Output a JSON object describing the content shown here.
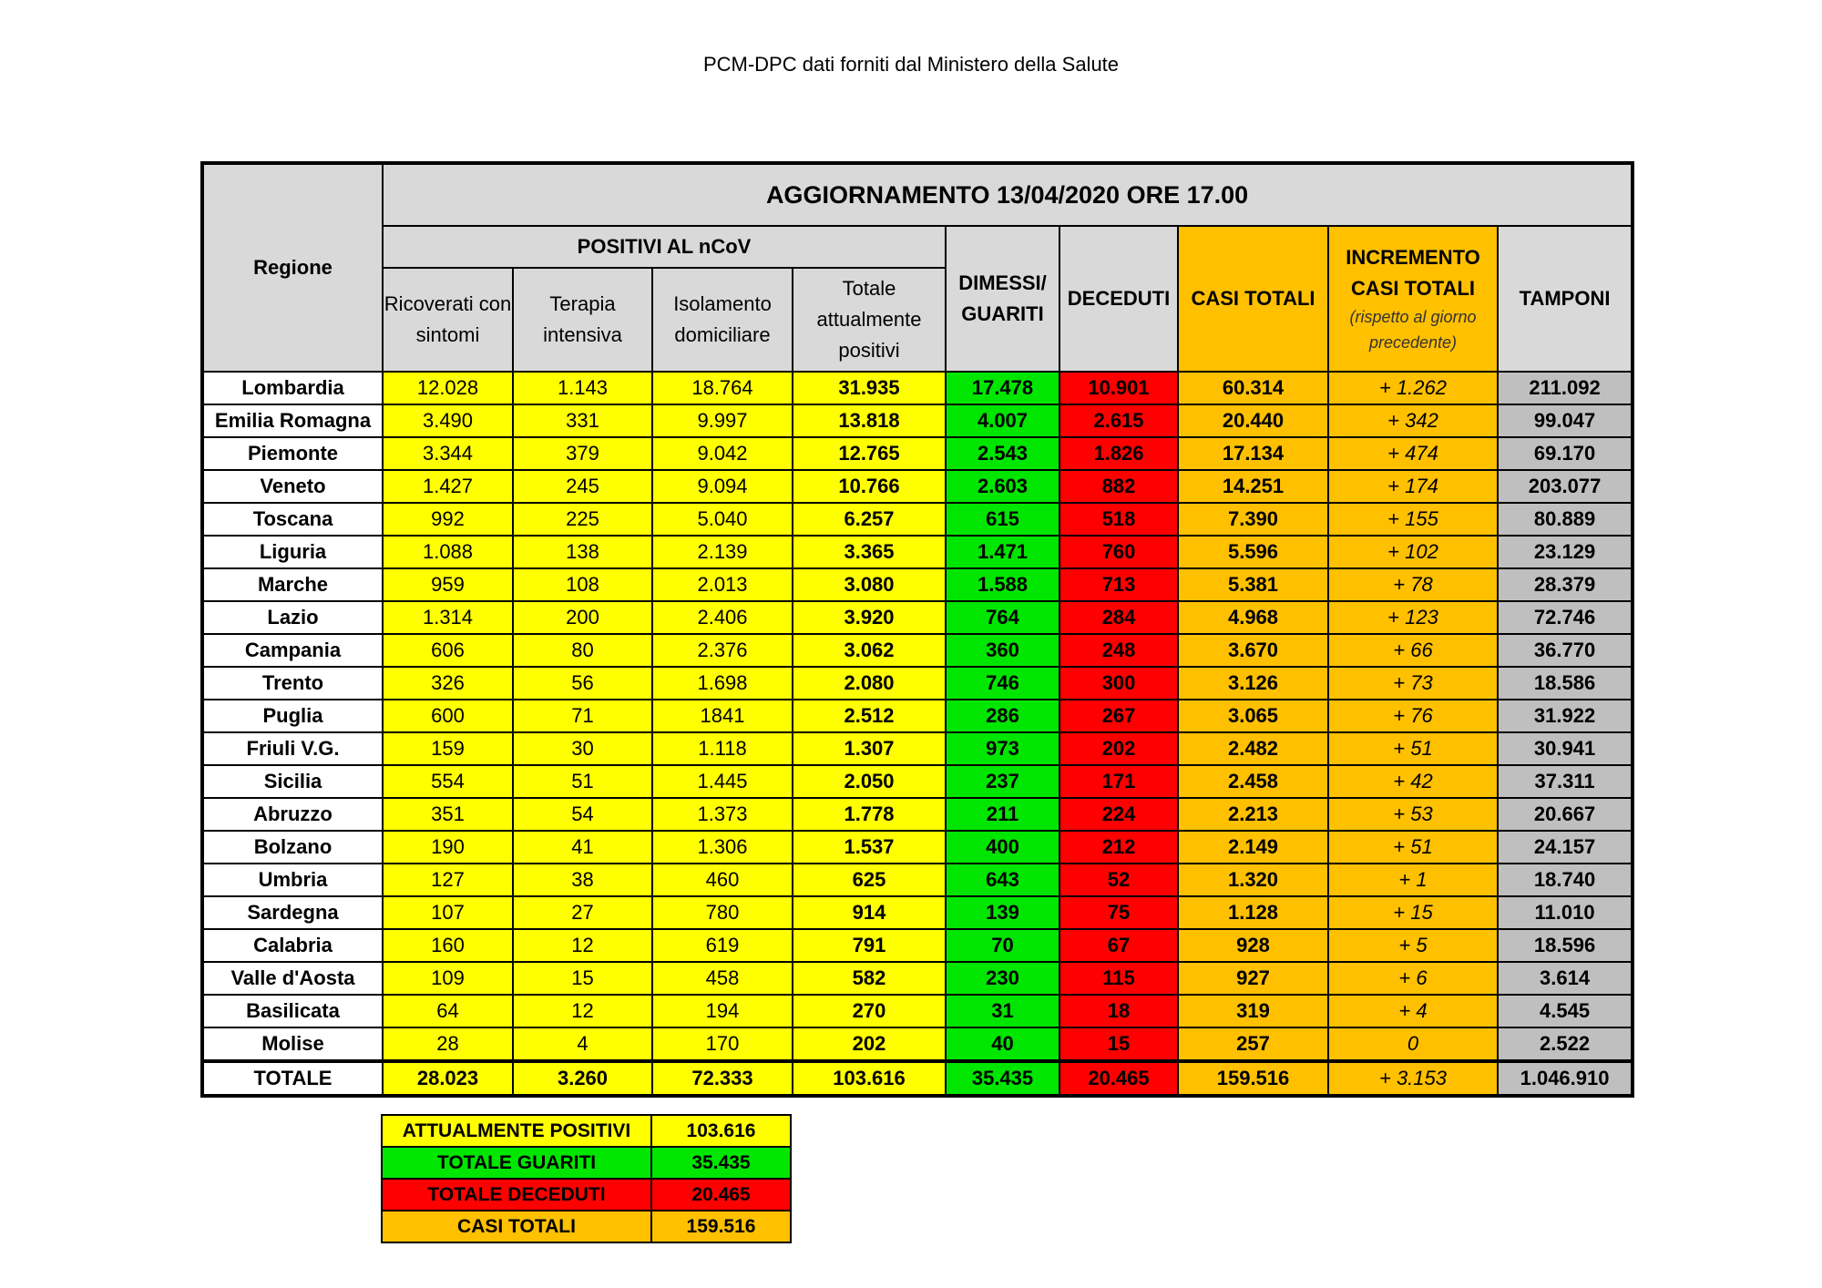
{
  "title": "PCM-DPC dati forniti dal Ministero della Salute",
  "header": {
    "regione": "Regione",
    "aggiornamento": "AGGIORNAMENTO 13/04/2020 ORE 17.00",
    "positivi": "POSITIVI AL nCoV",
    "ricoverati": "Ricoverati con sintomi",
    "terapia": "Terapia intensiva",
    "isolamento": "Isolamento domiciliare",
    "totale_positivi": "Totale attualmente positivi",
    "dimessi": "DIMESSI/ GUARITI",
    "deceduti": "DECEDUTI",
    "casi_totali": "CASI TOTALI",
    "incremento": "INCREMENTO CASI  TOTALI",
    "incremento_note": "(rispetto al giorno precedente)",
    "tamponi": "TAMPONI"
  },
  "colors": {
    "positivi": "#ffff00",
    "guariti": "#00e600",
    "deceduti": "#ff0000",
    "casi": "#ffc000",
    "tamponi": "#bfbfbf",
    "header": "#d9d9d9"
  },
  "rows": [
    [
      "Lombardia",
      "12.028",
      "1.143",
      "18.764",
      "31.935",
      "17.478",
      "10.901",
      "60.314",
      "+ 1.262",
      "211.092"
    ],
    [
      "Emilia Romagna",
      "3.490",
      "331",
      "9.997",
      "13.818",
      "4.007",
      "2.615",
      "20.440",
      "+ 342",
      "99.047"
    ],
    [
      "Piemonte",
      "3.344",
      "379",
      "9.042",
      "12.765",
      "2.543",
      "1.826",
      "17.134",
      "+ 474",
      "69.170"
    ],
    [
      "Veneto",
      "1.427",
      "245",
      "9.094",
      "10.766",
      "2.603",
      "882",
      "14.251",
      "+ 174",
      "203.077"
    ],
    [
      "Toscana",
      "992",
      "225",
      "5.040",
      "6.257",
      "615",
      "518",
      "7.390",
      "+ 155",
      "80.889"
    ],
    [
      "Liguria",
      "1.088",
      "138",
      "2.139",
      "3.365",
      "1.471",
      "760",
      "5.596",
      "+ 102",
      "23.129"
    ],
    [
      "Marche",
      "959",
      "108",
      "2.013",
      "3.080",
      "1.588",
      "713",
      "5.381",
      "+ 78",
      "28.379"
    ],
    [
      "Lazio",
      "1.314",
      "200",
      "2.406",
      "3.920",
      "764",
      "284",
      "4.968",
      "+ 123",
      "72.746"
    ],
    [
      "Campania",
      "606",
      "80",
      "2.376",
      "3.062",
      "360",
      "248",
      "3.670",
      "+ 66",
      "36.770"
    ],
    [
      "Trento",
      "326",
      "56",
      "1.698",
      "2.080",
      "746",
      "300",
      "3.126",
      "+ 73",
      "18.586"
    ],
    [
      "Puglia",
      "600",
      "71",
      "1841",
      "2.512",
      "286",
      "267",
      "3.065",
      "+ 76",
      "31.922"
    ],
    [
      "Friuli V.G.",
      "159",
      "30",
      "1.118",
      "1.307",
      "973",
      "202",
      "2.482",
      "+ 51",
      "30.941"
    ],
    [
      "Sicilia",
      "554",
      "51",
      "1.445",
      "2.050",
      "237",
      "171",
      "2.458",
      "+ 42",
      "37.311"
    ],
    [
      "Abruzzo",
      "351",
      "54",
      "1.373",
      "1.778",
      "211",
      "224",
      "2.213",
      "+ 53",
      "20.667"
    ],
    [
      "Bolzano",
      "190",
      "41",
      "1.306",
      "1.537",
      "400",
      "212",
      "2.149",
      "+ 51",
      "24.157"
    ],
    [
      "Umbria",
      "127",
      "38",
      "460",
      "625",
      "643",
      "52",
      "1.320",
      "+ 1",
      "18.740"
    ],
    [
      "Sardegna",
      "107",
      "27",
      "780",
      "914",
      "139",
      "75",
      "1.128",
      "+ 15",
      "11.010"
    ],
    [
      "Calabria",
      "160",
      "12",
      "619",
      "791",
      "70",
      "67",
      "928",
      "+ 5",
      "18.596"
    ],
    [
      "Valle d'Aosta",
      "109",
      "15",
      "458",
      "582",
      "230",
      "115",
      "927",
      "+ 6",
      "3.614"
    ],
    [
      "Basilicata",
      "64",
      "12",
      "194",
      "270",
      "31",
      "18",
      "319",
      "+ 4",
      "4.545"
    ],
    [
      "Molise",
      "28",
      "4",
      "170",
      "202",
      "40",
      "15",
      "257",
      "0",
      "2.522"
    ]
  ],
  "totale": [
    "TOTALE",
    "28.023",
    "3.260",
    "72.333",
    "103.616",
    "35.435",
    "20.465",
    "159.516",
    "+ 3.153",
    "1.046.910"
  ],
  "summary": [
    {
      "label": "ATTUALMENTE POSITIVI",
      "value": "103.616",
      "color": "#ffff00"
    },
    {
      "label": "TOTALE GUARITI",
      "value": "35.435",
      "color": "#00e600"
    },
    {
      "label": "TOTALE DECEDUTI",
      "value": "20.465",
      "color": "#ff0000"
    },
    {
      "label": "CASI TOTALI",
      "value": "159.516",
      "color": "#ffc000"
    }
  ]
}
